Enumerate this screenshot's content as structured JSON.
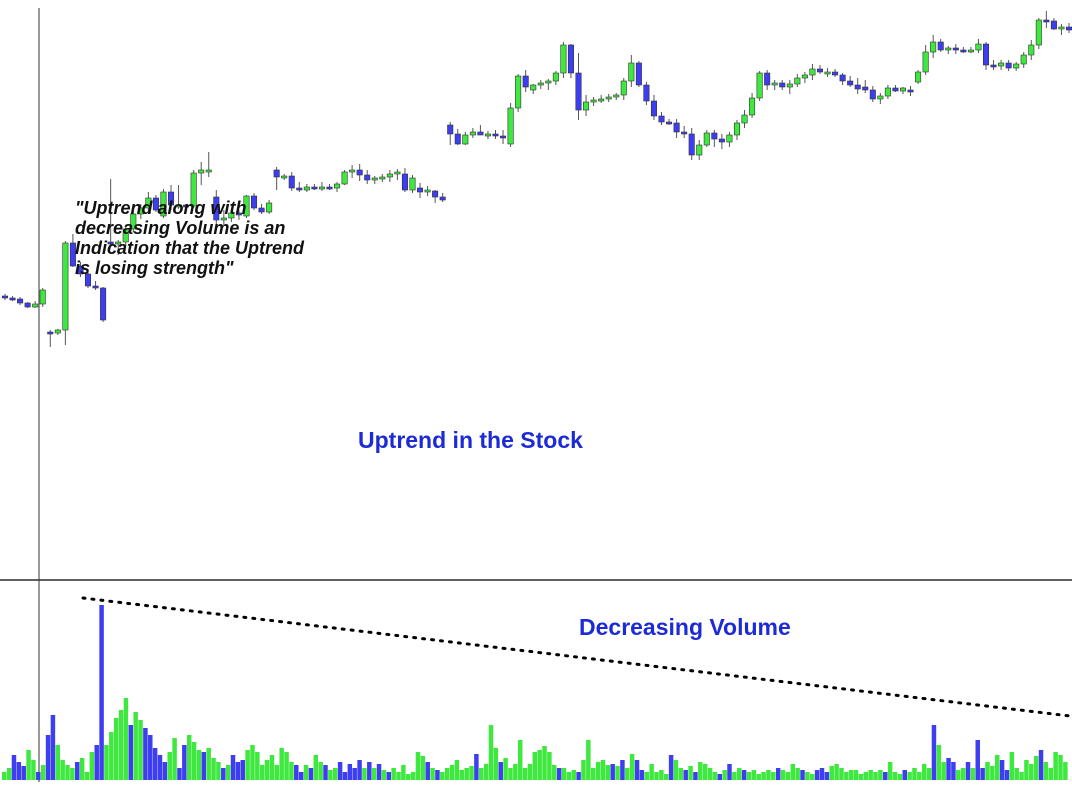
{
  "annotations": {
    "quote": "\"Uptrend along with decreasing Volume is an Indication that the Uptrend is losing strength\"",
    "uptrend_label": "Uptrend in the Stock",
    "volume_label": "Decreasing Volume"
  },
  "colors": {
    "bull": "#3ee83e",
    "bear": "#3d3df2",
    "wick": "#555555",
    "divider": "#000000",
    "annotation_text": "#1d2bd6",
    "trendline": "#000000"
  },
  "chart_data": [
    {
      "type": "candlestick",
      "title": "",
      "xlabel": "",
      "ylabel": "",
      "ylim": [
        0,
        590
      ],
      "grid": false,
      "candles": [
        {
          "o": 294,
          "h": 296,
          "l": 290,
          "c": 292
        },
        {
          "o": 292,
          "h": 294,
          "l": 289,
          "c": 291
        },
        {
          "o": 291,
          "h": 293,
          "l": 285,
          "c": 287
        },
        {
          "o": 287,
          "h": 288,
          "l": 282,
          "c": 283
        },
        {
          "o": 283,
          "h": 289,
          "l": 282,
          "c": 286
        },
        {
          "o": 286,
          "h": 302,
          "l": 283,
          "c": 300
        },
        {
          "o": 258,
          "h": 260,
          "l": 243,
          "c": 257
        },
        {
          "o": 257,
          "h": 261,
          "l": 255,
          "c": 260
        },
        {
          "o": 260,
          "h": 349,
          "l": 245,
          "c": 347
        },
        {
          "o": 347,
          "h": 356,
          "l": 323,
          "c": 324
        },
        {
          "o": 324,
          "h": 328,
          "l": 313,
          "c": 316
        },
        {
          "o": 316,
          "h": 319,
          "l": 302,
          "c": 304
        },
        {
          "o": 304,
          "h": 309,
          "l": 300,
          "c": 302
        },
        {
          "o": 302,
          "h": 303,
          "l": 268,
          "c": 270
        },
        {
          "o": 348,
          "h": 411,
          "l": 344,
          "c": 346
        },
        {
          "o": 346,
          "h": 350,
          "l": 335,
          "c": 348
        },
        {
          "o": 348,
          "h": 364,
          "l": 344,
          "c": 361
        },
        {
          "o": 361,
          "h": 382,
          "l": 358,
          "c": 376
        },
        {
          "o": 376,
          "h": 386,
          "l": 371,
          "c": 382
        },
        {
          "o": 382,
          "h": 398,
          "l": 377,
          "c": 392
        },
        {
          "o": 392,
          "h": 395,
          "l": 378,
          "c": 380
        },
        {
          "o": 374,
          "h": 401,
          "l": 372,
          "c": 398
        },
        {
          "o": 398,
          "h": 405,
          "l": 380,
          "c": 385
        },
        {
          "o": 384,
          "h": 405,
          "l": 381,
          "c": 385
        },
        {
          "o": 385,
          "h": 386,
          "l": 381,
          "c": 384
        },
        {
          "o": 384,
          "h": 420,
          "l": 382,
          "c": 417
        },
        {
          "o": 417,
          "h": 428,
          "l": 405,
          "c": 420
        },
        {
          "o": 420,
          "h": 438,
          "l": 413,
          "c": 420
        },
        {
          "o": 393,
          "h": 400,
          "l": 360,
          "c": 370
        },
        {
          "o": 370,
          "h": 380,
          "l": 364,
          "c": 372
        },
        {
          "o": 372,
          "h": 380,
          "l": 368,
          "c": 377
        },
        {
          "o": 377,
          "h": 380,
          "l": 370,
          "c": 375
        },
        {
          "o": 374,
          "h": 395,
          "l": 372,
          "c": 394
        },
        {
          "o": 394,
          "h": 397,
          "l": 380,
          "c": 382
        },
        {
          "o": 382,
          "h": 386,
          "l": 376,
          "c": 378
        },
        {
          "o": 378,
          "h": 390,
          "l": 376,
          "c": 387
        },
        {
          "o": 420,
          "h": 423,
          "l": 400,
          "c": 413
        },
        {
          "o": 413,
          "h": 416,
          "l": 410,
          "c": 414
        },
        {
          "o": 414,
          "h": 418,
          "l": 399,
          "c": 402
        },
        {
          "o": 402,
          "h": 408,
          "l": 398,
          "c": 400
        },
        {
          "o": 400,
          "h": 406,
          "l": 398,
          "c": 403
        },
        {
          "o": 403,
          "h": 406,
          "l": 400,
          "c": 402
        },
        {
          "o": 402,
          "h": 408,
          "l": 399,
          "c": 403
        },
        {
          "o": 403,
          "h": 406,
          "l": 400,
          "c": 402
        },
        {
          "o": 402,
          "h": 408,
          "l": 398,
          "c": 406
        },
        {
          "o": 406,
          "h": 420,
          "l": 405,
          "c": 418
        },
        {
          "o": 418,
          "h": 425,
          "l": 412,
          "c": 420
        },
        {
          "o": 420,
          "h": 426,
          "l": 409,
          "c": 415
        },
        {
          "o": 415,
          "h": 420,
          "l": 406,
          "c": 410
        },
        {
          "o": 410,
          "h": 414,
          "l": 406,
          "c": 412
        },
        {
          "o": 412,
          "h": 416,
          "l": 408,
          "c": 413
        },
        {
          "o": 413,
          "h": 420,
          "l": 408,
          "c": 416
        },
        {
          "o": 416,
          "h": 421,
          "l": 410,
          "c": 418
        },
        {
          "o": 416,
          "h": 422,
          "l": 398,
          "c": 400
        },
        {
          "o": 400,
          "h": 415,
          "l": 397,
          "c": 412
        },
        {
          "o": 402,
          "h": 407,
          "l": 392,
          "c": 398
        },
        {
          "o": 398,
          "h": 404,
          "l": 394,
          "c": 400
        },
        {
          "o": 399,
          "h": 400,
          "l": 387,
          "c": 393
        },
        {
          "o": 393,
          "h": 397,
          "l": 388,
          "c": 390
        },
        {
          "o": 465,
          "h": 468,
          "l": 445,
          "c": 456
        },
        {
          "o": 456,
          "h": 461,
          "l": 445,
          "c": 446
        },
        {
          "o": 446,
          "h": 458,
          "l": 445,
          "c": 455
        },
        {
          "o": 455,
          "h": 462,
          "l": 452,
          "c": 458
        },
        {
          "o": 458,
          "h": 465,
          "l": 455,
          "c": 455
        },
        {
          "o": 455,
          "h": 459,
          "l": 451,
          "c": 456
        },
        {
          "o": 456,
          "h": 460,
          "l": 451,
          "c": 454
        },
        {
          "o": 454,
          "h": 460,
          "l": 446,
          "c": 453
        },
        {
          "o": 446,
          "h": 487,
          "l": 443,
          "c": 482
        },
        {
          "o": 482,
          "h": 516,
          "l": 478,
          "c": 514
        },
        {
          "o": 514,
          "h": 520,
          "l": 498,
          "c": 503
        },
        {
          "o": 500,
          "h": 506,
          "l": 496,
          "c": 505
        },
        {
          "o": 505,
          "h": 510,
          "l": 501,
          "c": 507
        },
        {
          "o": 507,
          "h": 511,
          "l": 500,
          "c": 509
        },
        {
          "o": 509,
          "h": 519,
          "l": 505,
          "c": 517
        },
        {
          "o": 517,
          "h": 548,
          "l": 512,
          "c": 545
        },
        {
          "o": 545,
          "h": 546,
          "l": 512,
          "c": 517
        },
        {
          "o": 517,
          "h": 537,
          "l": 470,
          "c": 480
        },
        {
          "o": 480,
          "h": 495,
          "l": 474,
          "c": 488
        },
        {
          "o": 488,
          "h": 493,
          "l": 484,
          "c": 490
        },
        {
          "o": 490,
          "h": 495,
          "l": 487,
          "c": 491
        },
        {
          "o": 491,
          "h": 496,
          "l": 488,
          "c": 493
        },
        {
          "o": 493,
          "h": 497,
          "l": 490,
          "c": 495
        },
        {
          "o": 495,
          "h": 512,
          "l": 490,
          "c": 509
        },
        {
          "o": 509,
          "h": 535,
          "l": 503,
          "c": 527
        },
        {
          "o": 527,
          "h": 529,
          "l": 503,
          "c": 505
        },
        {
          "o": 505,
          "h": 508,
          "l": 485,
          "c": 489
        },
        {
          "o": 489,
          "h": 495,
          "l": 470,
          "c": 474
        },
        {
          "o": 474,
          "h": 478,
          "l": 465,
          "c": 468
        },
        {
          "o": 468,
          "h": 471,
          "l": 465,
          "c": 467
        },
        {
          "o": 467,
          "h": 471,
          "l": 452,
          "c": 458
        },
        {
          "o": 458,
          "h": 464,
          "l": 452,
          "c": 456
        },
        {
          "o": 456,
          "h": 462,
          "l": 430,
          "c": 435
        },
        {
          "o": 435,
          "h": 450,
          "l": 430,
          "c": 445
        },
        {
          "o": 445,
          "h": 460,
          "l": 443,
          "c": 457
        },
        {
          "o": 457,
          "h": 460,
          "l": 443,
          "c": 451
        },
        {
          "o": 451,
          "h": 456,
          "l": 441,
          "c": 448
        },
        {
          "o": 448,
          "h": 458,
          "l": 443,
          "c": 455
        },
        {
          "o": 455,
          "h": 470,
          "l": 450,
          "c": 467
        },
        {
          "o": 467,
          "h": 480,
          "l": 462,
          "c": 475
        },
        {
          "o": 475,
          "h": 497,
          "l": 472,
          "c": 492
        },
        {
          "o": 492,
          "h": 519,
          "l": 489,
          "c": 517
        },
        {
          "o": 517,
          "h": 520,
          "l": 500,
          "c": 505
        },
        {
          "o": 505,
          "h": 510,
          "l": 500,
          "c": 507
        },
        {
          "o": 507,
          "h": 510,
          "l": 500,
          "c": 503
        },
        {
          "o": 503,
          "h": 510,
          "l": 496,
          "c": 506
        },
        {
          "o": 506,
          "h": 516,
          "l": 503,
          "c": 512
        },
        {
          "o": 512,
          "h": 518,
          "l": 507,
          "c": 515
        },
        {
          "o": 515,
          "h": 526,
          "l": 510,
          "c": 521
        },
        {
          "o": 521,
          "h": 525,
          "l": 516,
          "c": 518
        },
        {
          "o": 518,
          "h": 522,
          "l": 513,
          "c": 518
        },
        {
          "o": 518,
          "h": 521,
          "l": 513,
          "c": 515
        },
        {
          "o": 515,
          "h": 517,
          "l": 505,
          "c": 509
        },
        {
          "o": 509,
          "h": 514,
          "l": 503,
          "c": 505
        },
        {
          "o": 505,
          "h": 512,
          "l": 496,
          "c": 501
        },
        {
          "o": 503,
          "h": 510,
          "l": 497,
          "c": 500
        },
        {
          "o": 500,
          "h": 504,
          "l": 488,
          "c": 491
        },
        {
          "o": 491,
          "h": 497,
          "l": 486,
          "c": 494
        },
        {
          "o": 494,
          "h": 505,
          "l": 491,
          "c": 502
        },
        {
          "o": 502,
          "h": 505,
          "l": 498,
          "c": 499
        },
        {
          "o": 499,
          "h": 503,
          "l": 496,
          "c": 502
        },
        {
          "o": 500,
          "h": 504,
          "l": 494,
          "c": 498
        },
        {
          "o": 508,
          "h": 520,
          "l": 506,
          "c": 518
        },
        {
          "o": 518,
          "h": 545,
          "l": 515,
          "c": 538
        },
        {
          "o": 538,
          "h": 555,
          "l": 532,
          "c": 548
        },
        {
          "o": 548,
          "h": 551,
          "l": 538,
          "c": 540
        },
        {
          "o": 540,
          "h": 544,
          "l": 536,
          "c": 542
        },
        {
          "o": 542,
          "h": 546,
          "l": 536,
          "c": 540
        },
        {
          "o": 540,
          "h": 543,
          "l": 537,
          "c": 539
        },
        {
          "o": 539,
          "h": 543,
          "l": 537,
          "c": 540
        },
        {
          "o": 540,
          "h": 551,
          "l": 537,
          "c": 546
        },
        {
          "o": 546,
          "h": 548,
          "l": 520,
          "c": 525
        },
        {
          "o": 525,
          "h": 530,
          "l": 520,
          "c": 524
        },
        {
          "o": 524,
          "h": 530,
          "l": 520,
          "c": 527
        },
        {
          "o": 527,
          "h": 530,
          "l": 519,
          "c": 522
        },
        {
          "o": 522,
          "h": 528,
          "l": 519,
          "c": 526
        },
        {
          "o": 526,
          "h": 538,
          "l": 522,
          "c": 535
        },
        {
          "o": 535,
          "h": 550,
          "l": 530,
          "c": 545
        },
        {
          "o": 545,
          "h": 572,
          "l": 541,
          "c": 570
        },
        {
          "o": 570,
          "h": 579,
          "l": 562,
          "c": 569
        },
        {
          "o": 569,
          "h": 572,
          "l": 560,
          "c": 561
        },
        {
          "o": 561,
          "h": 566,
          "l": 555,
          "c": 563
        },
        {
          "o": 563,
          "h": 567,
          "l": 557,
          "c": 560
        }
      ]
    },
    {
      "type": "bar",
      "title": "",
      "xlabel": "",
      "ylabel": "",
      "ylim": [
        0,
        180
      ],
      "grid": false,
      "values": [
        8,
        12,
        25,
        18,
        14,
        30,
        20,
        8,
        15,
        45,
        65,
        35,
        20,
        15,
        12,
        18,
        22,
        8,
        28,
        35,
        175,
        35,
        48,
        62,
        70,
        82,
        55,
        68,
        60,
        52,
        45,
        32,
        25,
        18,
        28,
        42,
        12,
        35,
        45,
        38,
        30,
        28,
        32,
        22,
        18,
        12,
        15,
        25,
        18,
        20,
        30,
        35,
        28,
        15,
        20,
        25,
        15,
        32,
        28,
        18,
        15,
        8,
        15,
        12,
        25,
        18,
        15,
        10,
        12,
        18,
        8,
        16,
        12,
        20,
        12,
        18,
        12,
        16,
        10,
        8,
        12,
        8,
        15,
        6,
        8,
        28,
        24,
        18,
        12,
        10,
        8,
        12,
        15,
        20,
        10,
        12,
        14,
        26,
        12,
        16,
        55,
        32,
        18,
        22,
        12,
        16,
        40,
        12,
        16,
        28,
        30,
        34,
        28,
        15,
        12,
        12,
        8,
        10,
        8,
        20,
        40,
        12,
        18,
        20,
        15,
        16,
        14,
        20,
        12,
        26,
        20,
        10,
        8,
        16,
        8,
        10,
        6,
        25,
        20,
        12,
        10,
        14,
        8,
        18,
        16,
        12,
        8,
        6,
        10,
        16,
        8,
        12,
        10,
        8,
        10,
        6,
        8,
        10,
        8,
        12,
        10,
        8,
        16,
        12,
        10,
        8,
        6,
        10,
        12,
        8,
        14,
        16,
        12,
        8,
        10,
        10,
        6,
        8,
        10,
        8,
        10,
        8,
        18,
        8,
        6,
        10,
        8,
        12,
        8,
        16,
        12,
        55,
        35,
        18,
        22,
        18,
        10,
        12,
        18,
        12,
        40,
        12,
        18,
        14,
        25,
        20,
        10,
        28,
        12,
        8,
        20,
        16,
        24,
        30,
        18,
        12,
        28,
        25,
        18
      ]
    }
  ]
}
